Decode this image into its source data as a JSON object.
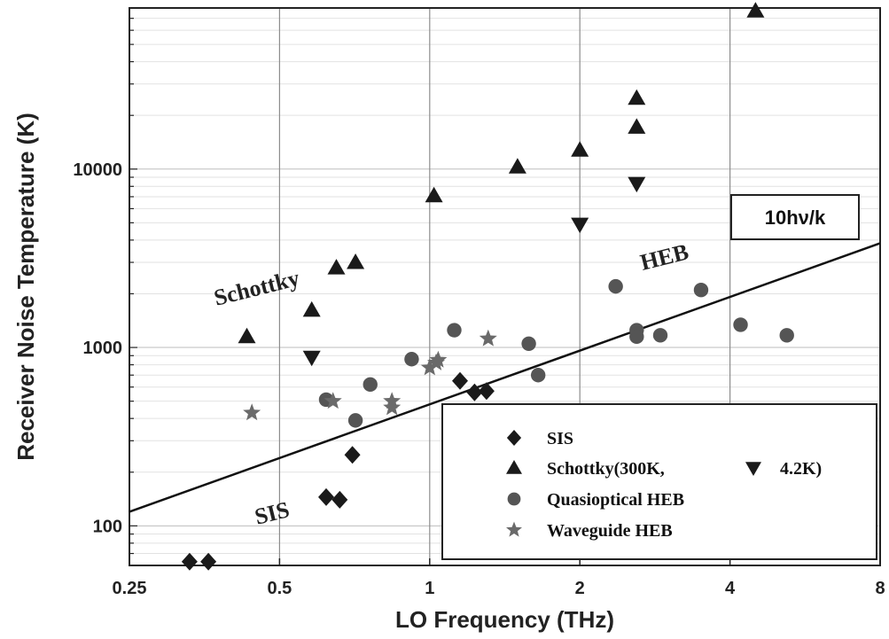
{
  "chart_data": {
    "type": "scatter",
    "xlabel": "LO Frequency (THz)",
    "ylabel": "Receiver Noise Temperature (K)",
    "xscale": "log",
    "yscale": "log",
    "xlim": [
      0.25,
      8
    ],
    "ylim": [
      60,
      80000
    ],
    "x_ticks": [
      0.25,
      0.5,
      1,
      2,
      4,
      8
    ],
    "x_tick_labels": [
      "0.25",
      "0.5",
      "1",
      "2",
      "4",
      "8"
    ],
    "y_ticks": [
      100,
      1000,
      10000
    ],
    "y_tick_labels": [
      "100",
      "1000",
      "10000"
    ],
    "grid": "vertical lines at x ticks, faint horizontal minor lines",
    "legend_position": "bottom-right",
    "series": [
      {
        "name": "SIS",
        "marker": "diamond",
        "points": [
          [
            0.33,
            63
          ],
          [
            0.36,
            63
          ],
          [
            0.62,
            145
          ],
          [
            0.66,
            140
          ],
          [
            0.7,
            250
          ],
          [
            1.15,
            650
          ],
          [
            1.23,
            560
          ],
          [
            1.3,
            570
          ]
        ]
      },
      {
        "name": "Schottky(300K,",
        "marker": "triangle-up",
        "points": [
          [
            0.43,
            1150
          ],
          [
            0.58,
            1620
          ],
          [
            0.65,
            2800
          ],
          [
            0.71,
            3000
          ],
          [
            1.02,
            7100
          ],
          [
            1.5,
            10300
          ],
          [
            2.0,
            12800
          ],
          [
            2.6,
            25000
          ],
          [
            2.6,
            17200
          ],
          [
            4.5,
            77000
          ]
        ]
      },
      {
        "name": "4.2K)",
        "marker": "triangle-down",
        "points": [
          [
            0.58,
            880
          ],
          [
            2.0,
            4900
          ],
          [
            2.6,
            8300
          ]
        ]
      },
      {
        "name": "Quasioptical HEB",
        "marker": "circle",
        "points": [
          [
            0.62,
            510
          ],
          [
            0.71,
            390
          ],
          [
            0.76,
            620
          ],
          [
            0.92,
            860
          ],
          [
            1.12,
            1250
          ],
          [
            1.58,
            1050
          ],
          [
            1.65,
            700
          ],
          [
            2.36,
            2200
          ],
          [
            2.6,
            1250
          ],
          [
            2.6,
            1150
          ],
          [
            2.9,
            1170
          ],
          [
            3.5,
            2100
          ],
          [
            4.2,
            1340
          ],
          [
            5.2,
            1170
          ]
        ]
      },
      {
        "name": "Waveguide HEB",
        "marker": "star",
        "points": [
          [
            0.44,
            430
          ],
          [
            0.64,
            500
          ],
          [
            0.84,
            500
          ],
          [
            0.84,
            460
          ],
          [
            1.0,
            770
          ],
          [
            1.03,
            820
          ],
          [
            1.04,
            850
          ],
          [
            1.31,
            1120
          ]
        ]
      }
    ],
    "reference_line": {
      "label": "10hν/k",
      "points": [
        [
          0.25,
          120
        ],
        [
          8,
          3840
        ]
      ]
    },
    "annotations": [
      {
        "text": "Schottky"
      },
      {
        "text": "HEB"
      },
      {
        "text": "SIS"
      }
    ]
  }
}
